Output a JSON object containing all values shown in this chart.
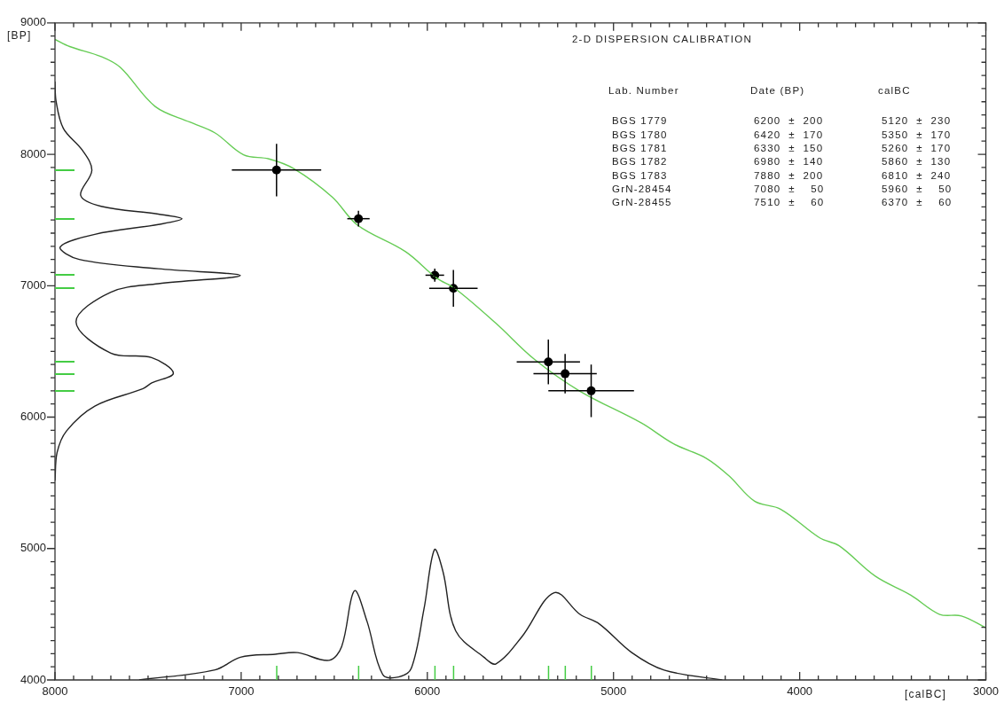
{
  "chart_data": {
    "type": "scatter",
    "title": "2-D DISPERSION CALIBRATION",
    "xlabel": "[calBC]",
    "ylabel": "[BP]",
    "xlim": [
      8000,
      3000
    ],
    "ylim": [
      4000,
      9000
    ],
    "xticks": [
      8000,
      {
        "value": 7900,
        "label": null
      },
      {
        "value": 7800,
        "label": null
      },
      {
        "value": 7700,
        "label": null
      },
      {
        "value": 7600,
        "label": null
      },
      {
        "value": 7500,
        "label": null
      },
      {
        "value": 7400,
        "label": null
      },
      {
        "value": 7300,
        "label": null
      },
      {
        "value": 7200,
        "label": null
      },
      {
        "value": 7100,
        "label": null
      },
      7000,
      {
        "value": 6900,
        "label": null
      },
      {
        "value": 6800,
        "label": null
      },
      {
        "value": 6700,
        "label": null
      },
      {
        "value": 6600,
        "label": null
      },
      {
        "value": 6500,
        "label": null
      },
      {
        "value": 6400,
        "label": null
      },
      {
        "value": 6300,
        "label": null
      },
      {
        "value": 6200,
        "label": null
      },
      {
        "value": 6100,
        "label": null
      },
      6000,
      {
        "value": 5900,
        "label": null
      },
      {
        "value": 5800,
        "label": null
      },
      {
        "value": 5700,
        "label": null
      },
      {
        "value": 5600,
        "label": null
      },
      {
        "value": 5500,
        "label": null
      },
      {
        "value": 5400,
        "label": null
      },
      {
        "value": 5300,
        "label": null
      },
      {
        "value": 5200,
        "label": null
      },
      {
        "value": 5100,
        "label": null
      },
      5000,
      {
        "value": 4900,
        "label": null
      },
      {
        "value": 4800,
        "label": null
      },
      {
        "value": 4700,
        "label": null
      },
      {
        "value": 4600,
        "label": null
      },
      {
        "value": 4500,
        "label": null
      },
      {
        "value": 4400,
        "label": null
      },
      {
        "value": 4300,
        "label": null
      },
      {
        "value": 4200,
        "label": null
      },
      {
        "value": 4100,
        "label": null
      },
      4000,
      {
        "value": 3900,
        "label": null
      },
      {
        "value": 3800,
        "label": null
      },
      {
        "value": 3700,
        "label": null
      },
      {
        "value": 3600,
        "label": null
      },
      {
        "value": 3500,
        "label": null
      },
      {
        "value": 3400,
        "label": null
      },
      {
        "value": 3300,
        "label": null
      },
      {
        "value": 3200,
        "label": null
      },
      {
        "value": 3100,
        "label": null
      },
      3000
    ],
    "yticks": [
      4000,
      {
        "value": 4100,
        "label": null
      },
      {
        "value": 4200,
        "label": null
      },
      {
        "value": 4300,
        "label": null
      },
      {
        "value": 4400,
        "label": null
      },
      {
        "value": 4500,
        "label": null
      },
      {
        "value": 4600,
        "label": null
      },
      {
        "value": 4700,
        "label": null
      },
      {
        "value": 4800,
        "label": null
      },
      {
        "value": 4900,
        "label": null
      },
      5000,
      {
        "value": 5100,
        "label": null
      },
      {
        "value": 5200,
        "label": null
      },
      {
        "value": 5300,
        "label": null
      },
      {
        "value": 5400,
        "label": null
      },
      {
        "value": 5500,
        "label": null
      },
      {
        "value": 5600,
        "label": null
      },
      {
        "value": 5700,
        "label": null
      },
      {
        "value": 5800,
        "label": null
      },
      {
        "value": 5900,
        "label": null
      },
      6000,
      {
        "value": 6100,
        "label": null
      },
      {
        "value": 6200,
        "label": null
      },
      {
        "value": 6300,
        "label": null
      },
      {
        "value": 6400,
        "label": null
      },
      {
        "value": 6500,
        "label": null
      },
      {
        "value": 6600,
        "label": null
      },
      {
        "value": 6700,
        "label": null
      },
      {
        "value": 6800,
        "label": null
      },
      {
        "value": 6900,
        "label": null
      },
      7000,
      {
        "value": 7100,
        "label": null
      },
      {
        "value": 7200,
        "label": null
      },
      {
        "value": 7300,
        "label": null
      },
      {
        "value": 7400,
        "label": null
      },
      {
        "value": 7500,
        "label": null
      },
      {
        "value": 7600,
        "label": null
      },
      {
        "value": 7700,
        "label": null
      },
      {
        "value": 7800,
        "label": null
      },
      {
        "value": 7900,
        "label": null
      },
      8000,
      {
        "value": 8100,
        "label": null
      },
      {
        "value": 8200,
        "label": null
      },
      {
        "value": 8300,
        "label": null
      },
      {
        "value": 8400,
        "label": null
      },
      {
        "value": 8500,
        "label": null
      },
      {
        "value": 8600,
        "label": null
      },
      {
        "value": 8700,
        "label": null
      },
      {
        "value": 8800,
        "label": null
      },
      {
        "value": 8900,
        "label": null
      },
      9000
    ],
    "series": [
      {
        "type": "line",
        "color": "#66cc55",
        "marker": "none",
        "x": [
          8000,
          7921,
          7751,
          7649,
          7462,
          7276,
          7140,
          6987,
          6851,
          6716,
          6511,
          6375,
          6117,
          5950,
          5848,
          5631,
          5425,
          5180,
          4850,
          4677,
          4503,
          4381,
          4242,
          4103,
          3892,
          3788,
          3594,
          3403,
          3248,
          3131,
          3000
        ],
        "values": [
          8874,
          8820,
          8743,
          8661,
          8364,
          8245,
          8162,
          7996,
          7965,
          7890,
          7675,
          7461,
          7259,
          7058,
          6975,
          6713,
          6440,
          6197,
          5955,
          5797,
          5688,
          5555,
          5360,
          5300,
          5081,
          5021,
          4790,
          4645,
          4499,
          4487,
          4397
        ]
      },
      {
        "type": "line",
        "color": "#222222",
        "marker": "none",
        "x": [
          8000,
          7995,
          7955,
          7853,
          7802,
          7862,
          7752,
          7445,
          7318,
          7445,
          7786,
          7972,
          7870,
          7445,
          7004,
          7445,
          7700,
          7887,
          7700,
          7481,
          7364,
          7480,
          7530,
          7786,
          7938,
          7989,
          8000
        ],
        "values": [
          8554,
          8411,
          8197,
          8031,
          7877,
          7687,
          7604,
          7545,
          7509,
          7466,
          7391,
          7295,
          7200,
          7129,
          7077,
          7015,
          6951,
          6726,
          6487,
          6453,
          6334,
          6260,
          6215,
          6084,
          5895,
          5729,
          5516
        ]
      },
      {
        "type": "line",
        "color": "#222222",
        "marker": "none",
        "x": [
          7548,
          7140,
          7004,
          6817,
          6698,
          6528,
          6460,
          6392,
          6324,
          6240,
          6154,
          6086,
          6018,
          5962,
          5916,
          5848,
          5696,
          5631,
          5492,
          5319,
          5180,
          5076,
          4902,
          4728,
          4416
        ],
        "values": [
          4000,
          4077,
          4173,
          4196,
          4208,
          4149,
          4255,
          4678,
          4446,
          4042,
          4023,
          4089,
          4540,
          4991,
          4825,
          4374,
          4173,
          4123,
          4329,
          4664,
          4499,
          4426,
          4208,
          4075,
          4000
        ]
      },
      {
        "type": "scatter",
        "color": "#000000",
        "marker": "circle",
        "x": [
          5120,
          5350,
          5260,
          5860,
          6810,
          5960,
          6370
        ],
        "values": [
          6200,
          6420,
          6330,
          6980,
          7880,
          7080,
          7510
        ],
        "errors": [
          200,
          170,
          150,
          140,
          200,
          50,
          60
        ],
        "xerrors": [
          230,
          170,
          170,
          130,
          240,
          50,
          60
        ]
      }
    ],
    "annotations": [
      "Lab. Number",
      "Date (BP)",
      "calBC",
      "BGS 1779",
      "6200  ±  200",
      "5120  ±  230",
      "BGS 1780",
      "6420  ±  170",
      "5350  ±  170",
      "BGS 1781",
      "6330  ±  150",
      "5260  ±  170",
      "BGS 1782",
      "6980  ±  140",
      "5860  ±  130",
      "BGS 1783",
      "7880  ±  200",
      "6810  ±  240",
      "GrN-28454",
      "7080  ±    50",
      "5960  ±    50",
      "GrN-28455",
      "7510  ±    60",
      "6370  ±    60"
    ]
  }
}
